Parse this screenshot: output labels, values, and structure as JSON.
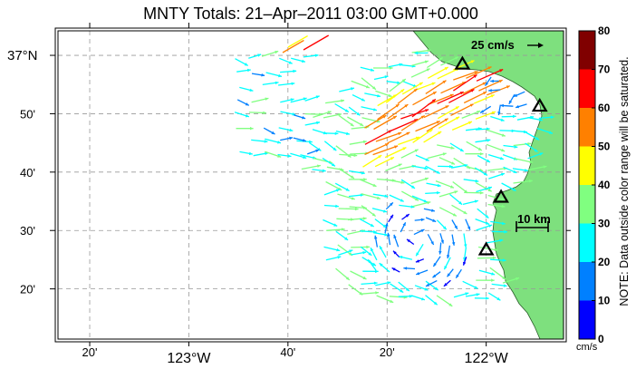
{
  "title": "MNTY Totals: 21–Apr–2011 03:00 GMT+0.000",
  "map": {
    "lat_labels": [
      {
        "text": "37°N",
        "lat": 37.0,
        "major": true
      },
      {
        "text": "50'",
        "lat": 36.8333
      },
      {
        "text": "40'",
        "lat": 36.6667
      },
      {
        "text": "30'",
        "lat": 36.5
      },
      {
        "text": "20'",
        "lat": 36.3333
      }
    ],
    "lon_labels": [
      {
        "text": "20'",
        "lon": -123.3333
      },
      {
        "text": "123°W",
        "lon": -123.0,
        "major": true
      },
      {
        "text": "40'",
        "lon": -122.6667
      },
      {
        "text": "20'",
        "lon": -122.3333
      },
      {
        "text": "122°W",
        "lon": -122.0,
        "major": true
      }
    ],
    "lon_range": [
      -123.44,
      -121.74
    ],
    "lat_range": [
      36.19,
      37.07
    ],
    "land_color": "#7ee07e",
    "grid_style": "dashed"
  },
  "scale_arrow": {
    "label": "25 cm/s"
  },
  "distance_scale": {
    "label": "10 km"
  },
  "stations": [
    {
      "lon": -122.08,
      "lat": 36.975
    },
    {
      "lon": -121.82,
      "lat": 36.855
    },
    {
      "lon": -121.95,
      "lat": 36.595
    },
    {
      "lon": -122.0,
      "lat": 36.445
    }
  ],
  "colorbar": {
    "ticks": [
      "0",
      "10",
      "20",
      "30",
      "40",
      "50",
      "60",
      "70",
      "80"
    ],
    "unit": "cm/s",
    "note": "NOTE: Data outside color range will be saturated.",
    "colors": [
      "#0000ff",
      "#0080ff",
      "#00ffff",
      "#80ff80",
      "#ffff00",
      "#ff8000",
      "#ff0000",
      "#800000"
    ]
  }
}
